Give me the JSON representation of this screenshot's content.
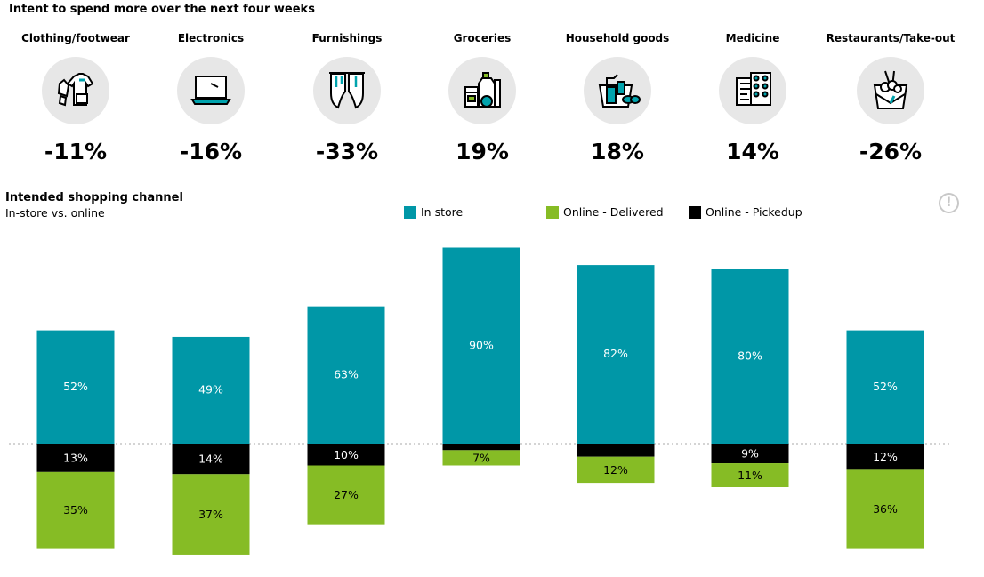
{
  "header": {
    "title": "Intent to spend more over the next four weeks"
  },
  "categories": [
    {
      "label": "Clothing/footwear",
      "pct": "-11%",
      "icon": "clothing-icon"
    },
    {
      "label": "Electronics",
      "pct": "-16%",
      "icon": "laptop-icon"
    },
    {
      "label": "Furnishings",
      "pct": "-33%",
      "icon": "curtains-icon"
    },
    {
      "label": "Groceries",
      "pct": "19%",
      "icon": "grocery-bag-icon"
    },
    {
      "label": "Household goods",
      "pct": "18%",
      "icon": "cleaning-supplies-icon"
    },
    {
      "label": "Medicine",
      "pct": "14%",
      "icon": "pills-icon"
    },
    {
      "label": "Restaurants/Take-out",
      "pct": "-26%",
      "icon": "takeout-box-icon"
    }
  ],
  "channel": {
    "title": "Intended shopping channel",
    "subtitle": "In-store vs. online",
    "info_icon": "exclamation-icon"
  },
  "legend": [
    {
      "label": "In store",
      "color": "#0097a7"
    },
    {
      "label": "Online - Delivered",
      "color": "#86bc25"
    },
    {
      "label": "Online - Pickedup",
      "color": "#000000"
    }
  ],
  "chart_data": {
    "type": "bar",
    "categories": [
      "Clothing/footwear",
      "Electronics",
      "Furnishings",
      "Groceries",
      "Household goods",
      "Medicine",
      "Restaurants/Take-out"
    ],
    "series": [
      {
        "name": "In store",
        "values": [
          52,
          49,
          63,
          90,
          82,
          80,
          52
        ],
        "labels": [
          "52%",
          "49%",
          "63%",
          "90%",
          "82%",
          "80%",
          "52%"
        ],
        "color": "#0097a7"
      },
      {
        "name": "Online - Pickedup",
        "values": [
          13,
          14,
          10,
          3,
          6,
          9,
          12
        ],
        "labels": [
          "13%",
          "14%",
          "10%",
          "",
          "",
          "9%",
          "12%"
        ],
        "color": "#000000"
      },
      {
        "name": "Online - Delivered",
        "values": [
          35,
          37,
          27,
          7,
          12,
          11,
          36
        ],
        "labels": [
          "35%",
          "37%",
          "27%",
          "7%",
          "12%",
          "11%",
          "36%"
        ],
        "color": "#86bc25"
      }
    ],
    "baseline": "dotted line between in-store (above) and online (below)",
    "grid": false,
    "legend_position": "top"
  }
}
